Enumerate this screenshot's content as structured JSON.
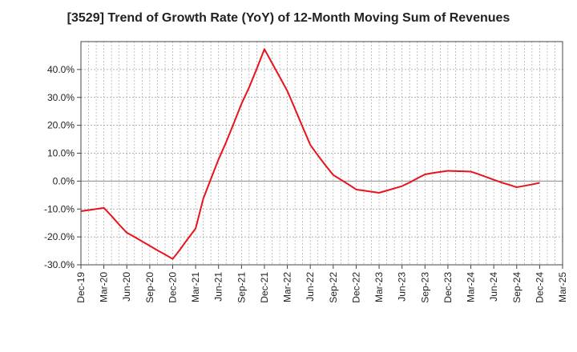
{
  "chart_data": {
    "type": "line",
    "title": "[3529]  Trend of Growth Rate (YoY) of 12-Month Moving Sum of Revenues",
    "xlabel": "",
    "ylabel": "",
    "ylim": [
      -30,
      50
    ],
    "y_ticks": [
      40,
      30,
      20,
      10,
      0,
      -10,
      -20,
      -30
    ],
    "y_tick_labels": [
      "40.0%",
      "30.0%",
      "20.0%",
      "10.0%",
      "0.0%",
      "-10.0%",
      "-20.0%",
      "-30.0%"
    ],
    "x_tick_labels": [
      "Dec-19",
      "Mar-20",
      "Jun-20",
      "Sep-20",
      "Dec-20",
      "Mar-21",
      "Jun-21",
      "Sep-21",
      "Dec-21",
      "Mar-22",
      "Jun-22",
      "Sep-22",
      "Dec-22",
      "Mar-23",
      "Jun-23",
      "Sep-23",
      "Dec-23",
      "Mar-24",
      "Jun-24",
      "Sep-24",
      "Dec-24",
      "Mar-25"
    ],
    "grid": true,
    "line_color": "#e8141c",
    "series": [
      {
        "x": [
          "Dec-19",
          "Jan-20",
          "Feb-20",
          "Mar-20",
          "Apr-20",
          "May-20",
          "Jun-20",
          "Jul-20",
          "Aug-20",
          "Sep-20",
          "Oct-20",
          "Nov-20",
          "Dec-20",
          "Jan-21",
          "Feb-21",
          "Mar-21",
          "Apr-21",
          "May-21",
          "Jun-21",
          "Jul-21",
          "Aug-21",
          "Sep-21",
          "Oct-21",
          "Nov-21",
          "Dec-21",
          "Jan-22",
          "Feb-22",
          "Mar-22",
          "Apr-22",
          "May-22",
          "Jun-22",
          "Jul-22",
          "Aug-22",
          "Sep-22",
          "Oct-22",
          "Nov-22",
          "Dec-22",
          "Jan-23",
          "Feb-23",
          "Mar-23",
          "Apr-23",
          "May-23",
          "Jun-23",
          "Jul-23",
          "Aug-23",
          "Sep-23",
          "Oct-23",
          "Nov-23",
          "Dec-23",
          "Jan-24",
          "Feb-24",
          "Mar-24",
          "Apr-24",
          "May-24",
          "Jun-24",
          "Jul-24",
          "Aug-24",
          "Sep-24",
          "Oct-24",
          "Nov-24",
          "Dec-24"
        ],
        "values": [
          -10.8,
          -10.4,
          -10.0,
          -9.6,
          -12.5,
          -15.6,
          -18.5,
          -20.0,
          -21.6,
          -23.2,
          -24.8,
          -26.3,
          -27.9,
          -24.4,
          -20.6,
          -17.0,
          -6.3,
          0.8,
          7.8,
          14.0,
          20.8,
          27.7,
          33.6,
          40.3,
          47.3,
          42.3,
          37.3,
          32.3,
          25.9,
          19.4,
          13.0,
          9.2,
          5.6,
          2.2,
          0.5,
          -1.2,
          -3.0,
          -3.4,
          -3.8,
          -4.2,
          -3.4,
          -2.6,
          -1.8,
          -0.5,
          1.0,
          2.4,
          2.9,
          3.3,
          3.7,
          3.6,
          3.5,
          3.4,
          2.5,
          1.5,
          0.5,
          -0.5,
          -1.3,
          -2.2,
          -1.7,
          -1.2,
          -0.6
        ]
      }
    ]
  }
}
